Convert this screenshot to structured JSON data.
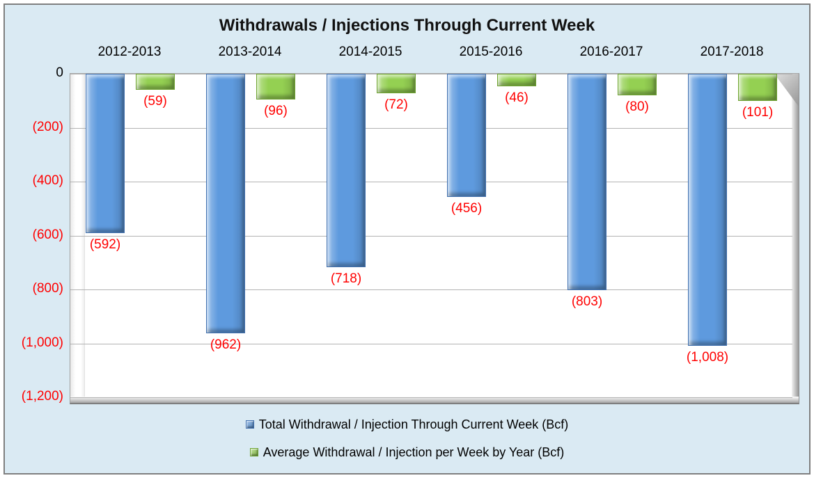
{
  "title": "Withdrawals / Injections Through Current Week",
  "chart_data": {
    "type": "bar",
    "title": "Withdrawals / Injections Through Current Week",
    "categories": [
      "2012-2013",
      "2013-2014",
      "2014-2015",
      "2015-2016",
      "2016-2017",
      "2017-2018"
    ],
    "series": [
      {
        "name": "Total Withdrawal / Injection Through Current Week (Bcf)",
        "color": "#5e9ade",
        "border_color": "#3f6fae",
        "values": [
          -592,
          -962,
          -718,
          -456,
          -803,
          -1008
        ],
        "data_labels": [
          "(592)",
          "(962)",
          "(718)",
          "(456)",
          "(803)",
          "(1,008)"
        ]
      },
      {
        "name": "Average Withdrawal / Injection per Week by Year (Bcf)",
        "color": "#94d052",
        "border_color": "#6da32f",
        "values": [
          -59,
          -96,
          -72,
          -46,
          -80,
          -101
        ],
        "data_labels": [
          "(59)",
          "(96)",
          "(72)",
          "(46)",
          "(80)",
          "(101)"
        ]
      }
    ],
    "y_axis": {
      "min": -1200,
      "max": 0,
      "tick_step": 200,
      "tick_labels": [
        "0",
        "(200)",
        "(400)",
        "(600)",
        "(800)",
        "(1,000)",
        "(1,200)"
      ]
    },
    "legend_position": "bottom",
    "grid": true,
    "styles": {
      "background": "#daeaf3",
      "frame_border": "#7f7f7f",
      "plot_background": "#ffffff",
      "gridline": "#b3b3b3",
      "data_label_color": "#ff0000",
      "tick_negative_color": "#ff0000",
      "tick_zero_color": "#000000"
    }
  }
}
